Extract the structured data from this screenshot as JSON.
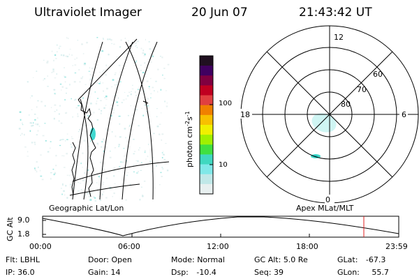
{
  "header": {
    "instrument": "Ultraviolet Imager",
    "date": "20 Jun 07",
    "time": "21:43:42 UT"
  },
  "geo_panel": {
    "title": "Geographic Lat/Lon",
    "emission_color": "#40d8d0"
  },
  "colorbar": {
    "label_main": "photon cm",
    "label_sup1": "-2",
    "label_s": "s",
    "label_sup2": "-1",
    "ticks": [
      "100",
      "10"
    ],
    "scale": "log",
    "colors_top_to_bottom": [
      "#201020",
      "#400060",
      "#800040",
      "#c00020",
      "#e04040",
      "#f08000",
      "#f8c000",
      "#f0f000",
      "#a0f000",
      "#40e040",
      "#40d8c0",
      "#80e8e8",
      "#c0e8e8",
      "#e8f0f0"
    ]
  },
  "polar_panel": {
    "title": "Apex MLat/MLT",
    "mlt_labels": {
      "top": "12",
      "bottom": "0",
      "left": "18",
      "right": "6"
    },
    "mlat_labels": [
      "60",
      "70",
      "80"
    ]
  },
  "altitude_plot": {
    "ylabel": "GC Alt",
    "yticks": [
      "9.0",
      "1.8"
    ],
    "xticks": [
      "00:00",
      "06:00",
      "12:00",
      "18:00",
      "23:59"
    ],
    "marker_color": "#e02020"
  },
  "info": {
    "row1": [
      {
        "label": "Flt:",
        "value": "LBHL"
      },
      {
        "label": "Door:",
        "value": "Open"
      },
      {
        "label": "Mode:",
        "value": "Normal"
      },
      {
        "label": "GC Alt:",
        "value": "5.0 Re"
      },
      {
        "label": "GLat:",
        "value": "-67.3"
      }
    ],
    "row2": [
      {
        "label": "IP:",
        "value": "36.0"
      },
      {
        "label": "Gain:",
        "value": "14"
      },
      {
        "label": "Dsp:",
        "value": "-10.4"
      },
      {
        "label": "Seq:",
        "value": "39"
      },
      {
        "label": "GLon:",
        "value": "55.7"
      }
    ]
  }
}
